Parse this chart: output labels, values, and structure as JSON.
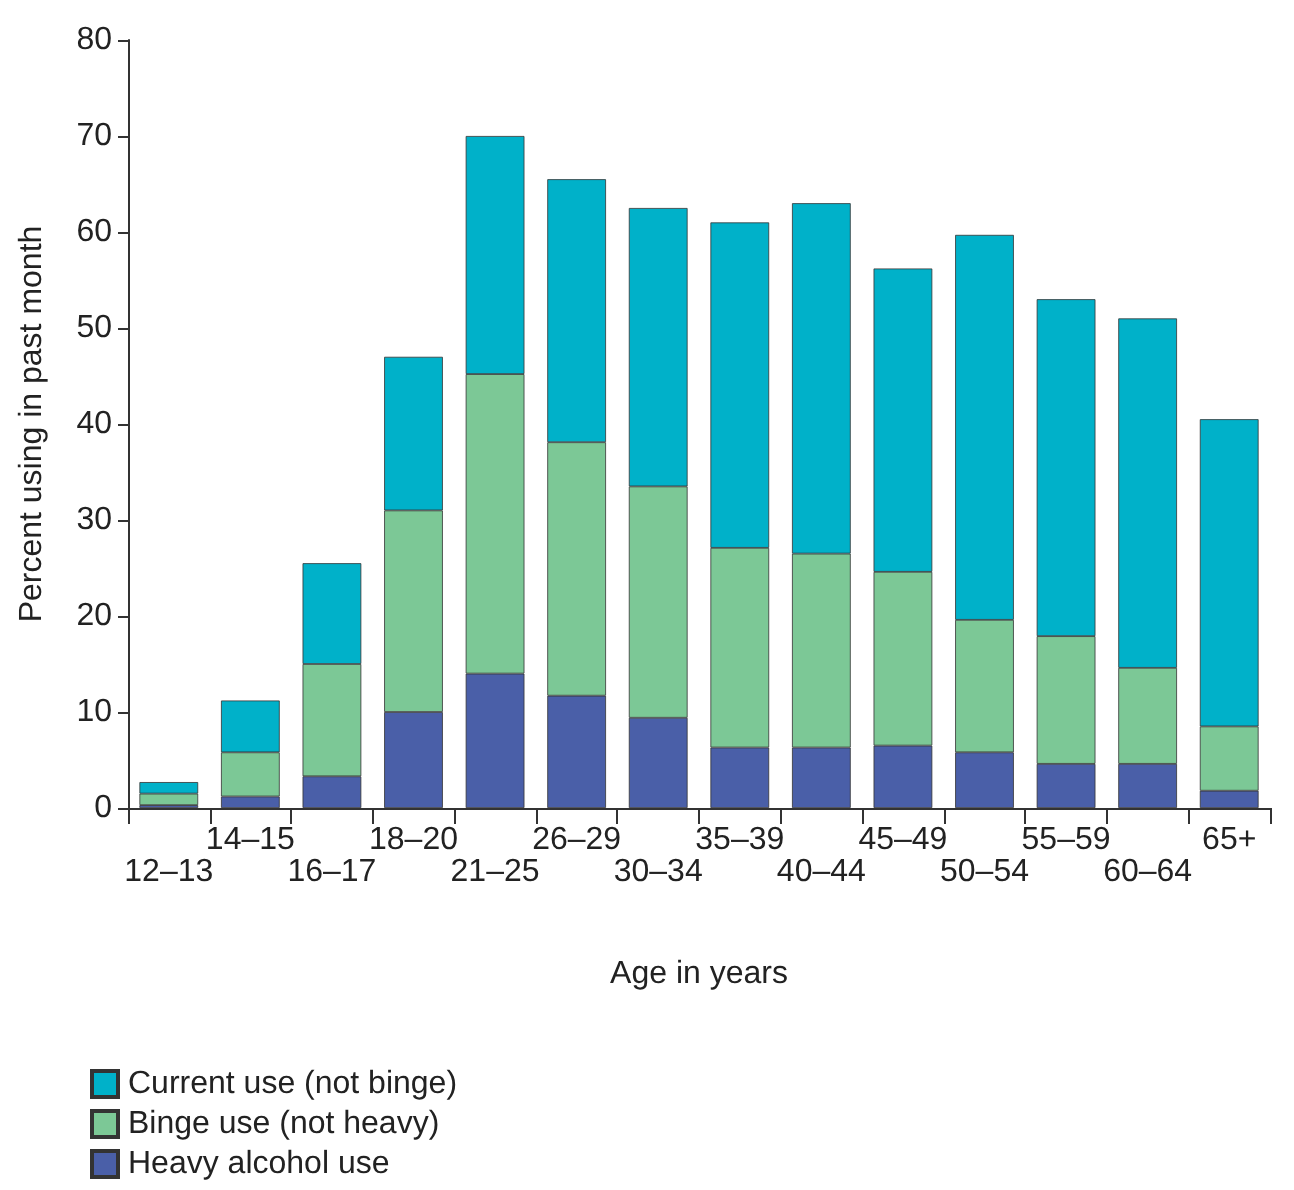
{
  "chart_data": {
    "type": "bar",
    "stacked": true,
    "xlabel": "Age in years",
    "ylabel": "Percent using in past month",
    "categories": [
      "12–13",
      "14–15",
      "16–17",
      "18–20",
      "21–25",
      "26–29",
      "30–34",
      "35–39",
      "40–44",
      "45–49",
      "50–54",
      "55–59",
      "60–64",
      "65+"
    ],
    "series": [
      {
        "name": "Heavy alcohol use",
        "color": "#4a5fa8",
        "values": [
          0.3,
          1.2,
          3.3,
          10,
          14,
          11.7,
          9.4,
          6.3,
          6.3,
          6.5,
          5.8,
          4.6,
          4.6,
          1.8
        ]
      },
      {
        "name": "Binge use (not heavy)",
        "color": "#7cc896",
        "values": [
          1.2,
          4.6,
          11.7,
          21,
          31.2,
          26.4,
          24.1,
          20.8,
          20.2,
          18.1,
          13.8,
          13.3,
          10,
          6.7
        ]
      },
      {
        "name": "Current use (not binge)",
        "color": "#00b1c9",
        "values": [
          1.2,
          5.4,
          10.5,
          16,
          24.8,
          27.4,
          29,
          33.9,
          36.5,
          31.6,
          40.1,
          35.1,
          36.4,
          32
        ]
      }
    ],
    "ylim": [
      0,
      80
    ],
    "yticks": [
      0,
      10,
      20,
      30,
      40,
      50,
      60,
      70,
      80
    ],
    "grid": false,
    "legend": "bottom left"
  }
}
